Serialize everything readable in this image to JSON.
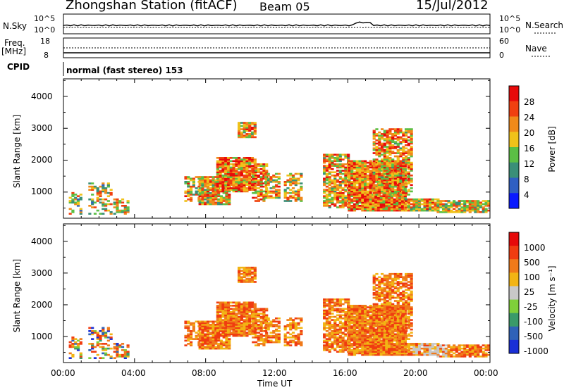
{
  "header": {
    "station": "Zhongshan Station (fitACF)",
    "beam": "Beam 05",
    "date": "15/Jul/2012"
  },
  "top_panel": {
    "nsky_label": "N.Sky",
    "nsearch_label": "N.Search",
    "left_ticks": [
      "10^5",
      "10^0"
    ],
    "right_ticks": [
      "10^5",
      "10^0"
    ]
  },
  "freq_panel": {
    "freq_label": "Freq.",
    "mhz_label": "[MHz]",
    "nave_label": "Nave",
    "left_ticks": [
      "18",
      "8"
    ],
    "right_ticks": [
      "60",
      "0"
    ]
  },
  "cpid": {
    "label": "CPID",
    "mode": "normal (fast stereo) 153"
  },
  "chart_data": [
    {
      "type": "heatmap",
      "title": "",
      "ylabel": "Slant Range [km]",
      "xlabel": "",
      "ylim": [
        180,
        4550
      ],
      "y_ticks": [
        "1000",
        "2000",
        "3000",
        "4000"
      ],
      "colorbar": {
        "label": "Power [dB]",
        "ticks": [
          "4",
          "8",
          "12",
          "16",
          "20",
          "24",
          "28"
        ],
        "colors": [
          "#0a1aff",
          "#2f5fc2",
          "#3a8f78",
          "#5bbf45",
          "#f0c21a",
          "#f08a1a",
          "#f04010",
          "#e80a0a"
        ]
      }
    },
    {
      "type": "heatmap",
      "title": "",
      "ylabel": "Slant Range [km]",
      "xlabel": "Time UT",
      "ylim": [
        180,
        4550
      ],
      "y_ticks": [
        "1000",
        "2000",
        "3000",
        "4000"
      ],
      "x_ticks": [
        "00:00",
        "04:00",
        "08:00",
        "12:00",
        "16:00",
        "20:00",
        "00:00"
      ],
      "colorbar": {
        "label": "Velocity [m s⁻¹]",
        "ticks": [
          "1000",
          "500",
          "100",
          "25",
          "-25",
          "-100",
          "-500",
          "-1000"
        ],
        "colors": [
          "#1a2fd6",
          "#2f62b8",
          "#3a9a6a",
          "#7fcf3a",
          "#c8c8c8",
          "#f2b414",
          "#f07a1a",
          "#f03c10",
          "#e60a0a"
        ]
      }
    }
  ]
}
